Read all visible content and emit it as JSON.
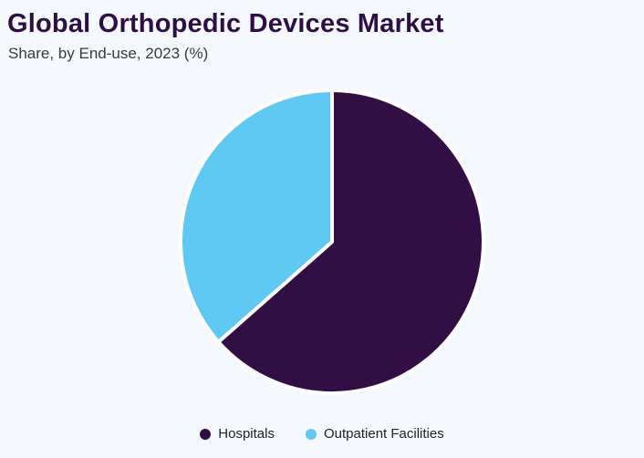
{
  "chart_data": {
    "type": "pie",
    "title": "Global Orthopedic Devices Market",
    "subtitle": "Share, by End-use, 2023 (%)",
    "categories": [
      "Hospitals",
      "Outpatient Facilities"
    ],
    "values": [
      63.5,
      36.5
    ],
    "colors": [
      "#330e45",
      "#5ec9f3"
    ],
    "legend_position": "bottom-center"
  },
  "legend": [
    {
      "label": "Hospitals",
      "color": "#330e45"
    },
    {
      "label": "Outpatient Facilities",
      "color": "#5ec9f3"
    }
  ]
}
